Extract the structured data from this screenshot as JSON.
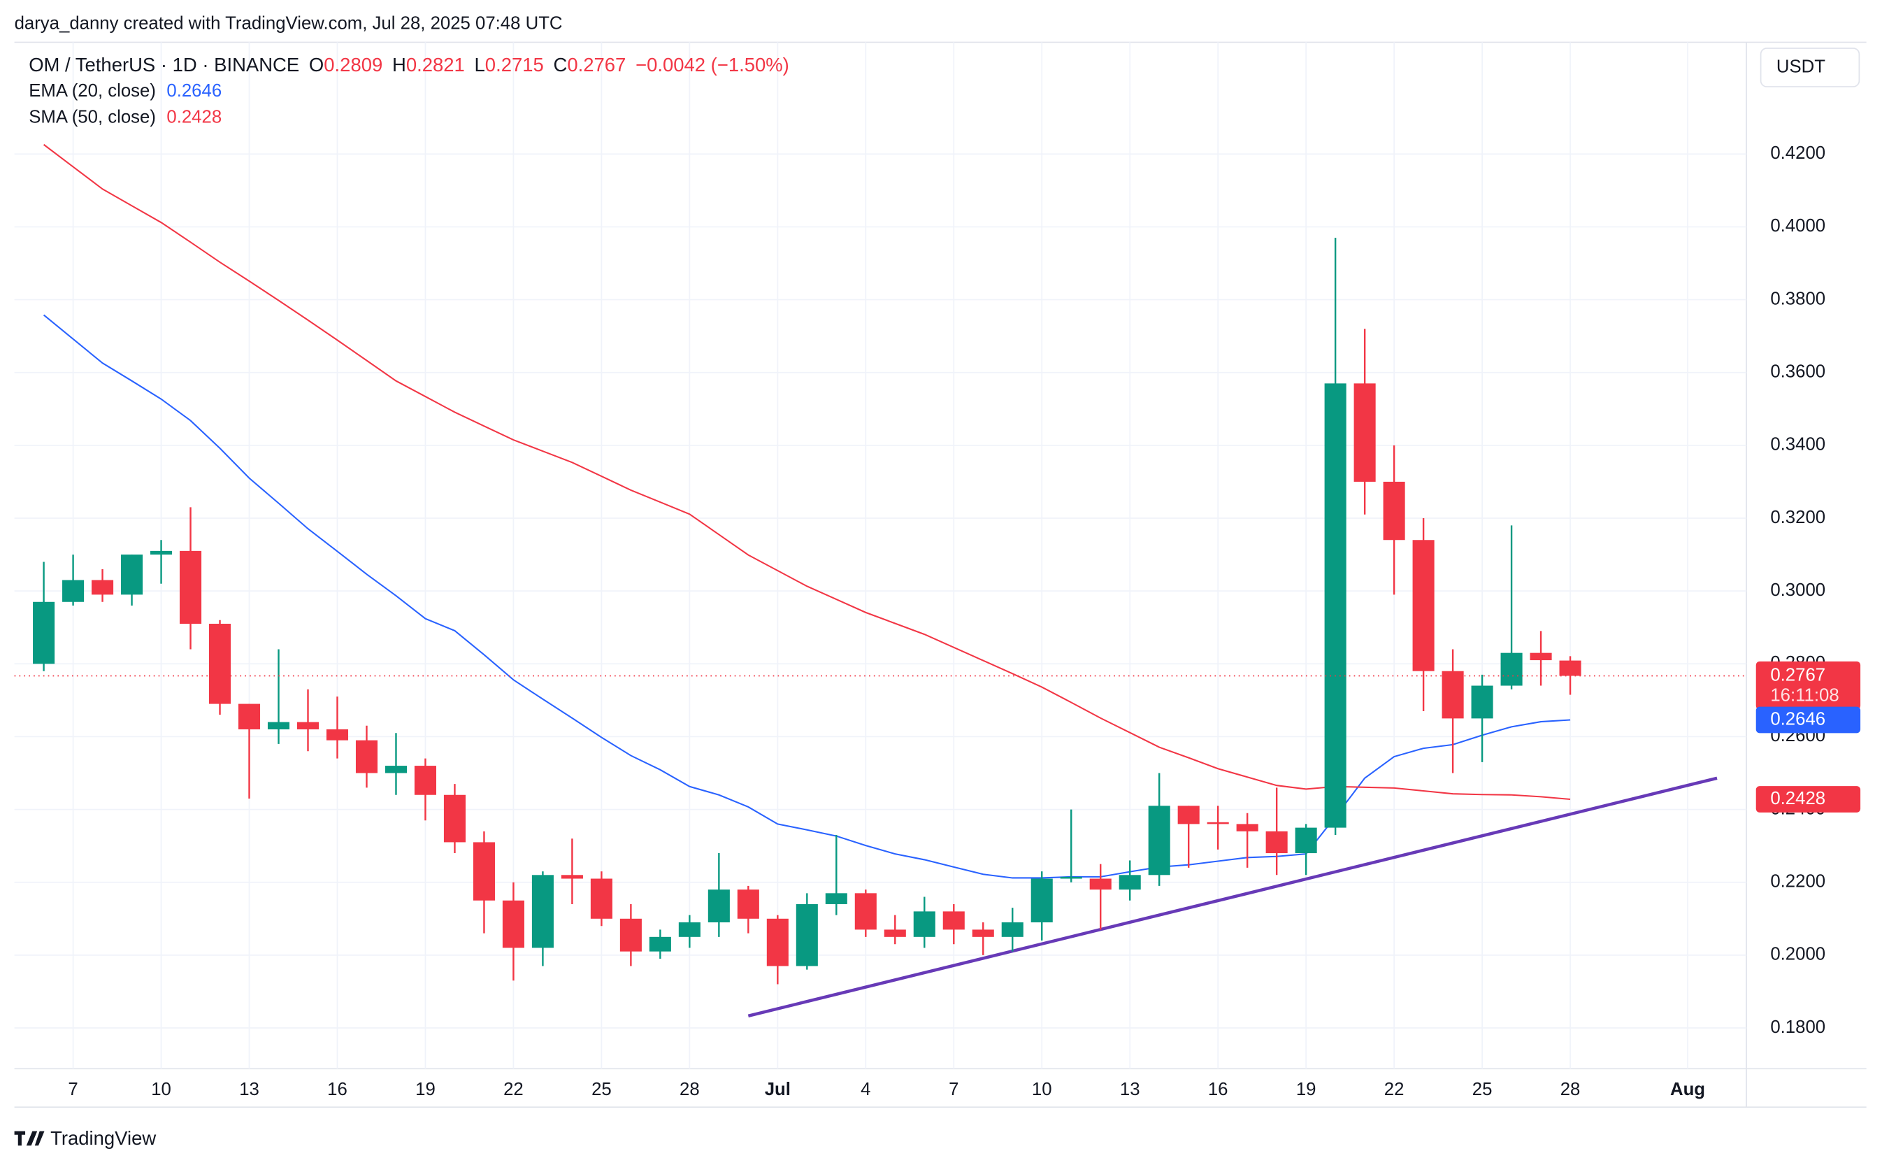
{
  "header": {
    "attribution": "darya_danny created with TradingView.com, Jul 28, 2025 07:48 UTC",
    "logo": "TradingView"
  },
  "chart_data": {
    "type": "candlestick",
    "title": "OM / TetherUS · 1D · BINANCE",
    "ohlc_labels": [
      "O",
      "H",
      "L",
      "C"
    ],
    "change": "−0.0042 (−1.50%)",
    "currency": "USDT",
    "countdown": "16:11:08",
    "up_color": "#089981",
    "down_color": "#f23645",
    "x": [
      "2025-06-06",
      "2025-06-07",
      "2025-06-08",
      "2025-06-09",
      "2025-06-10",
      "2025-06-11",
      "2025-06-12",
      "2025-06-13",
      "2025-06-14",
      "2025-06-15",
      "2025-06-16",
      "2025-06-17",
      "2025-06-18",
      "2025-06-19",
      "2025-06-20",
      "2025-06-21",
      "2025-06-22",
      "2025-06-23",
      "2025-06-24",
      "2025-06-25",
      "2025-06-26",
      "2025-06-27",
      "2025-06-28",
      "2025-06-29",
      "2025-06-30",
      "2025-07-01",
      "2025-07-02",
      "2025-07-03",
      "2025-07-04",
      "2025-07-05",
      "2025-07-06",
      "2025-07-07",
      "2025-07-08",
      "2025-07-09",
      "2025-07-10",
      "2025-07-11",
      "2025-07-12",
      "2025-07-13",
      "2025-07-14",
      "2025-07-15",
      "2025-07-16",
      "2025-07-17",
      "2025-07-18",
      "2025-07-19",
      "2025-07-20",
      "2025-07-21",
      "2025-07-22",
      "2025-07-23",
      "2025-07-24",
      "2025-07-25",
      "2025-07-26",
      "2025-07-27",
      "2025-07-28"
    ],
    "open": [
      0.28,
      0.297,
      0.303,
      0.299,
      0.31,
      0.311,
      0.291,
      0.269,
      0.262,
      0.264,
      0.262,
      0.259,
      0.25,
      0.252,
      0.244,
      0.231,
      0.215,
      0.202,
      0.222,
      0.221,
      0.21,
      0.201,
      0.205,
      0.209,
      0.218,
      0.21,
      0.197,
      0.214,
      0.217,
      0.207,
      0.205,
      0.212,
      0.207,
      0.205,
      0.209,
      0.221,
      0.221,
      0.218,
      0.222,
      0.241,
      0.2365,
      0.236,
      0.234,
      0.228,
      0.235,
      0.357,
      0.33,
      0.314,
      0.278,
      0.265,
      0.274,
      0.283,
      0.2809
    ],
    "high": [
      0.308,
      0.31,
      0.306,
      0.31,
      0.314,
      0.323,
      0.292,
      0.269,
      0.284,
      0.273,
      0.271,
      0.263,
      0.261,
      0.254,
      0.247,
      0.234,
      0.22,
      0.223,
      0.232,
      0.223,
      0.214,
      0.207,
      0.211,
      0.228,
      0.219,
      0.211,
      0.217,
      0.233,
      0.218,
      0.211,
      0.216,
      0.214,
      0.209,
      0.213,
      0.223,
      0.24,
      0.225,
      0.226,
      0.25,
      0.241,
      0.241,
      0.239,
      0.246,
      0.236,
      0.397,
      0.372,
      0.34,
      0.32,
      0.284,
      0.277,
      0.318,
      0.289,
      0.2821
    ],
    "low": [
      0.278,
      0.296,
      0.297,
      0.296,
      0.302,
      0.284,
      0.266,
      0.243,
      0.258,
      0.256,
      0.254,
      0.246,
      0.244,
      0.237,
      0.228,
      0.206,
      0.193,
      0.197,
      0.214,
      0.208,
      0.197,
      0.199,
      0.202,
      0.205,
      0.206,
      0.192,
      0.196,
      0.211,
      0.205,
      0.203,
      0.202,
      0.203,
      0.2,
      0.201,
      0.204,
      0.22,
      0.207,
      0.215,
      0.219,
      0.224,
      0.229,
      0.224,
      0.222,
      0.222,
      0.233,
      0.321,
      0.299,
      0.267,
      0.25,
      0.253,
      0.273,
      0.274,
      0.2715
    ],
    "close": [
      0.297,
      0.303,
      0.299,
      0.31,
      0.311,
      0.291,
      0.269,
      0.262,
      0.264,
      0.262,
      0.259,
      0.25,
      0.252,
      0.244,
      0.231,
      0.215,
      0.202,
      0.222,
      0.221,
      0.21,
      0.201,
      0.205,
      0.209,
      0.218,
      0.21,
      0.197,
      0.214,
      0.217,
      0.207,
      0.205,
      0.212,
      0.207,
      0.205,
      0.209,
      0.221,
      0.2215,
      0.218,
      0.222,
      0.241,
      0.236,
      0.236,
      0.234,
      0.228,
      0.235,
      0.357,
      0.33,
      0.314,
      0.278,
      0.265,
      0.274,
      0.283,
      0.281,
      0.2767
    ],
    "series": [
      {
        "name": "EMA (20, close)",
        "color": "#2962ff",
        "values": [
          0.3758,
          0.3692,
          0.3626,
          0.3577,
          0.3527,
          0.3468,
          0.3392,
          0.331,
          0.3241,
          0.3171,
          0.3109,
          0.3046,
          0.2987,
          0.2924,
          0.2891,
          0.2825,
          0.2756,
          0.2703,
          0.2651,
          0.2598,
          0.2548,
          0.2509,
          0.2463,
          0.244,
          0.2407,
          0.236,
          0.2344,
          0.2327,
          0.2301,
          0.2278,
          0.2262,
          0.2242,
          0.2222,
          0.2212,
          0.2212,
          0.2215,
          0.2215,
          0.2229,
          0.2242,
          0.2248,
          0.2258,
          0.2268,
          0.2271,
          0.2278,
          0.238,
          0.2486,
          0.2545,
          0.2568,
          0.2578,
          0.2604,
          0.2627,
          0.2641,
          0.2646
        ]
      },
      {
        "name": "SMA (50, close)",
        "color": "#f23645",
        "values": [
          0.4226,
          0.4165,
          0.4104,
          0.4058,
          0.4012,
          0.3958,
          0.3903,
          0.3851,
          0.3798,
          0.3744,
          0.3689,
          0.3633,
          0.3577,
          0.3534,
          0.3491,
          0.3453,
          0.3415,
          0.3384,
          0.3353,
          0.3315,
          0.3277,
          0.3244,
          0.3211,
          0.3155,
          0.3099,
          0.3056,
          0.3013,
          0.2977,
          0.2941,
          0.2911,
          0.2881,
          0.2845,
          0.2809,
          0.2773,
          0.2736,
          0.2694,
          0.2651,
          0.2611,
          0.2571,
          0.2542,
          0.2512,
          0.2489,
          0.2466,
          0.2456,
          0.2463,
          0.2461,
          0.2459,
          0.2451,
          0.2443,
          0.2441,
          0.244,
          0.2435,
          0.2428
        ]
      }
    ],
    "trendline": {
      "x": [
        "2025-06-30",
        "2025-08-02"
      ],
      "values": [
        0.1833,
        0.2486
      ],
      "color": "#673ab7"
    },
    "xlim": [
      "2025-06-05",
      "2025-08-03"
    ],
    "xticks": [
      {
        "value": "2025-06-07",
        "label": "7"
      },
      {
        "value": "2025-06-10",
        "label": "10"
      },
      {
        "value": "2025-06-13",
        "label": "13"
      },
      {
        "value": "2025-06-16",
        "label": "16"
      },
      {
        "value": "2025-06-19",
        "label": "19"
      },
      {
        "value": "2025-06-22",
        "label": "22"
      },
      {
        "value": "2025-06-25",
        "label": "25"
      },
      {
        "value": "2025-06-28",
        "label": "28"
      },
      {
        "value": "2025-07-01",
        "label": "Jul"
      },
      {
        "value": "2025-07-04",
        "label": "4"
      },
      {
        "value": "2025-07-07",
        "label": "7"
      },
      {
        "value": "2025-07-10",
        "label": "10"
      },
      {
        "value": "2025-07-13",
        "label": "13"
      },
      {
        "value": "2025-07-16",
        "label": "16"
      },
      {
        "value": "2025-07-19",
        "label": "19"
      },
      {
        "value": "2025-07-22",
        "label": "22"
      },
      {
        "value": "2025-07-25",
        "label": "25"
      },
      {
        "value": "2025-07-28",
        "label": "28"
      },
      {
        "value": "2025-08-01",
        "label": "Aug"
      }
    ],
    "ylim": [
      0.1688,
      0.4507
    ],
    "yticks": [
      {
        "value": 0.18,
        "label": "0.1800"
      },
      {
        "value": 0.2,
        "label": "0.2000"
      },
      {
        "value": 0.22,
        "label": "0.2200"
      },
      {
        "value": 0.24,
        "label": "0.2400"
      },
      {
        "value": 0.26,
        "label": "0.2600"
      },
      {
        "value": 0.28,
        "label": "0.2800"
      },
      {
        "value": 0.3,
        "label": "0.3000"
      },
      {
        "value": 0.32,
        "label": "0.3200"
      },
      {
        "value": 0.34,
        "label": "0.3400"
      },
      {
        "value": 0.36,
        "label": "0.3600"
      },
      {
        "value": 0.38,
        "label": "0.3800"
      },
      {
        "value": 0.4,
        "label": "0.4000"
      },
      {
        "value": 0.42,
        "label": "0.4200"
      }
    ],
    "grid": true
  }
}
